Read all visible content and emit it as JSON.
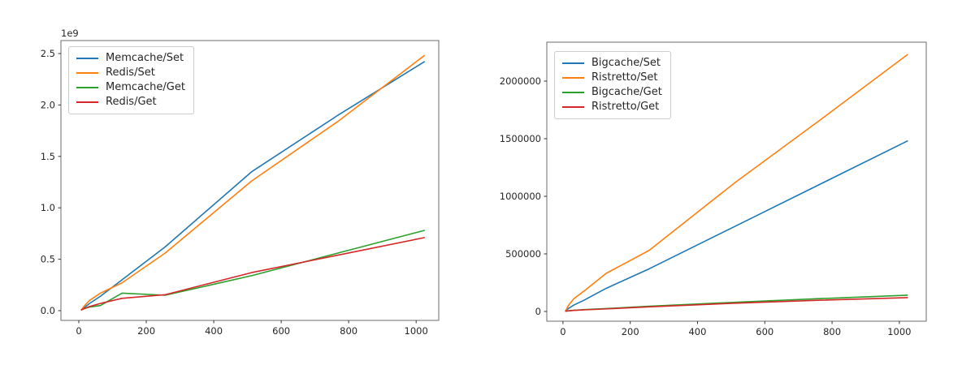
{
  "figure": {
    "background": "#ffffff"
  },
  "palette": {
    "blue": "#1f77b4",
    "orange": "#ff7f0e",
    "green": "#2ca02c",
    "red": "#d62728",
    "spine": "#6e6e6e",
    "tick": "#333333",
    "text": "#262626",
    "legend_border": "#cccccc"
  },
  "chart_data": [
    {
      "type": "line",
      "title": "",
      "xlabel": "",
      "ylabel": "",
      "offset_label": "1e9",
      "legend_position": "upper left",
      "grid": false,
      "xlim": [
        -53,
        1067
      ],
      "ylim": [
        -94600000,
        2626500000
      ],
      "xticks": {
        "values": [
          0,
          200,
          400,
          600,
          800,
          1000
        ],
        "labels": [
          "0",
          "200",
          "400",
          "600",
          "800",
          "1000"
        ]
      },
      "yticks": {
        "values": [
          0,
          500000000,
          1000000000,
          1500000000,
          2000000000,
          2500000000
        ],
        "labels": [
          "0.0",
          "0.5",
          "1.0",
          "1.5",
          "2.0",
          "2.5"
        ]
      },
      "x": [
        8,
        16,
        32,
        64,
        128,
        256,
        512,
        768,
        1024
      ],
      "series": [
        {
          "name": "Memcache/Set",
          "color_key": "blue",
          "values": [
            10000000,
            30000000,
            70000000,
            140000000,
            300000000,
            620000000,
            1350000000,
            1900000000,
            2420000000
          ]
        },
        {
          "name": "Redis/Set",
          "color_key": "orange",
          "values": [
            10000000,
            45000000,
            100000000,
            170000000,
            270000000,
            560000000,
            1260000000,
            1840000000,
            2480000000
          ]
        },
        {
          "name": "Memcache/Get",
          "color_key": "green",
          "values": [
            8000000,
            20000000,
            35000000,
            50000000,
            170000000,
            150000000,
            340000000,
            560000000,
            780000000
          ]
        },
        {
          "name": "Redis/Get",
          "color_key": "red",
          "values": [
            8000000,
            20000000,
            40000000,
            70000000,
            120000000,
            155000000,
            370000000,
            540000000,
            710000000
          ]
        }
      ]
    },
    {
      "type": "line",
      "title": "",
      "xlabel": "",
      "ylabel": "",
      "offset_label": "",
      "legend_position": "upper left",
      "grid": false,
      "xlim": [
        -48,
        1080
      ],
      "ylim": [
        -84500,
        2338000
      ],
      "xticks": {
        "values": [
          0,
          200,
          400,
          600,
          800,
          1000
        ],
        "labels": [
          "0",
          "200",
          "400",
          "600",
          "800",
          "1000"
        ]
      },
      "yticks": {
        "values": [
          0,
          500000,
          1000000,
          1500000,
          2000000
        ],
        "labels": [
          "0",
          "500000",
          "1000000",
          "1500000",
          "2000000"
        ]
      },
      "x": [
        8,
        16,
        32,
        64,
        128,
        256,
        512,
        768,
        1024
      ],
      "series": [
        {
          "name": "Bigcache/Set",
          "color_key": "blue",
          "values": [
            5000,
            25000,
            55000,
            100000,
            200000,
            370000,
            740000,
            1110000,
            1480000
          ]
        },
        {
          "name": "Ristretto/Set",
          "color_key": "orange",
          "values": [
            5000,
            50000,
            110000,
            180000,
            330000,
            530000,
            1120000,
            1670000,
            2230000
          ]
        },
        {
          "name": "Bigcache/Get",
          "color_key": "green",
          "values": [
            3000,
            6000,
            10000,
            16000,
            25000,
            45000,
            80000,
            112000,
            141000
          ]
        },
        {
          "name": "Ristretto/Get",
          "color_key": "red",
          "values": [
            3000,
            5000,
            9000,
            14000,
            22000,
            40000,
            72000,
            98000,
            120000
          ]
        }
      ]
    }
  ]
}
